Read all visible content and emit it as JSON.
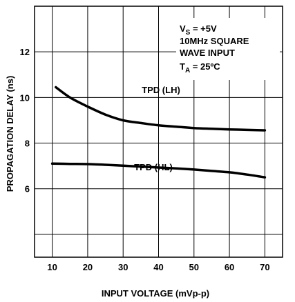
{
  "chart_data": {
    "type": "line",
    "title": "",
    "xlabel": "INPUT VOLTAGE (mVp-p)",
    "ylabel": "PROPAGATION DELAY (ns)",
    "xlim": [
      5,
      75
    ],
    "ylim": [
      3,
      14
    ],
    "x_ticks": [
      10,
      20,
      30,
      40,
      50,
      60,
      70
    ],
    "y_ticks": [
      6,
      8,
      10,
      12
    ],
    "grid": true,
    "series": [
      {
        "name": "TPD (LH)",
        "x": [
          11,
          15,
          20,
          25,
          30,
          35,
          40,
          45,
          50,
          55,
          60,
          65,
          70
        ],
        "y": [
          10.45,
          10.0,
          9.6,
          9.25,
          9.0,
          8.88,
          8.78,
          8.72,
          8.66,
          8.63,
          8.6,
          8.58,
          8.56
        ]
      },
      {
        "name": "TPD (HL)",
        "x": [
          10,
          15,
          20,
          25,
          30,
          35,
          40,
          45,
          50,
          55,
          60,
          65,
          70
        ],
        "y": [
          7.1,
          7.09,
          7.08,
          7.05,
          7.01,
          6.97,
          6.93,
          6.89,
          6.84,
          6.78,
          6.72,
          6.62,
          6.5
        ]
      }
    ],
    "annotations": {
      "vs_main": "V",
      "vs_sub": "S",
      "vs_rest": " = +5V",
      "line2": "10MHz SQUARE",
      "line3": "WAVE INPUT",
      "ta_main": "T",
      "ta_sub": "A",
      "ta_rest": " = 25ºC"
    }
  }
}
